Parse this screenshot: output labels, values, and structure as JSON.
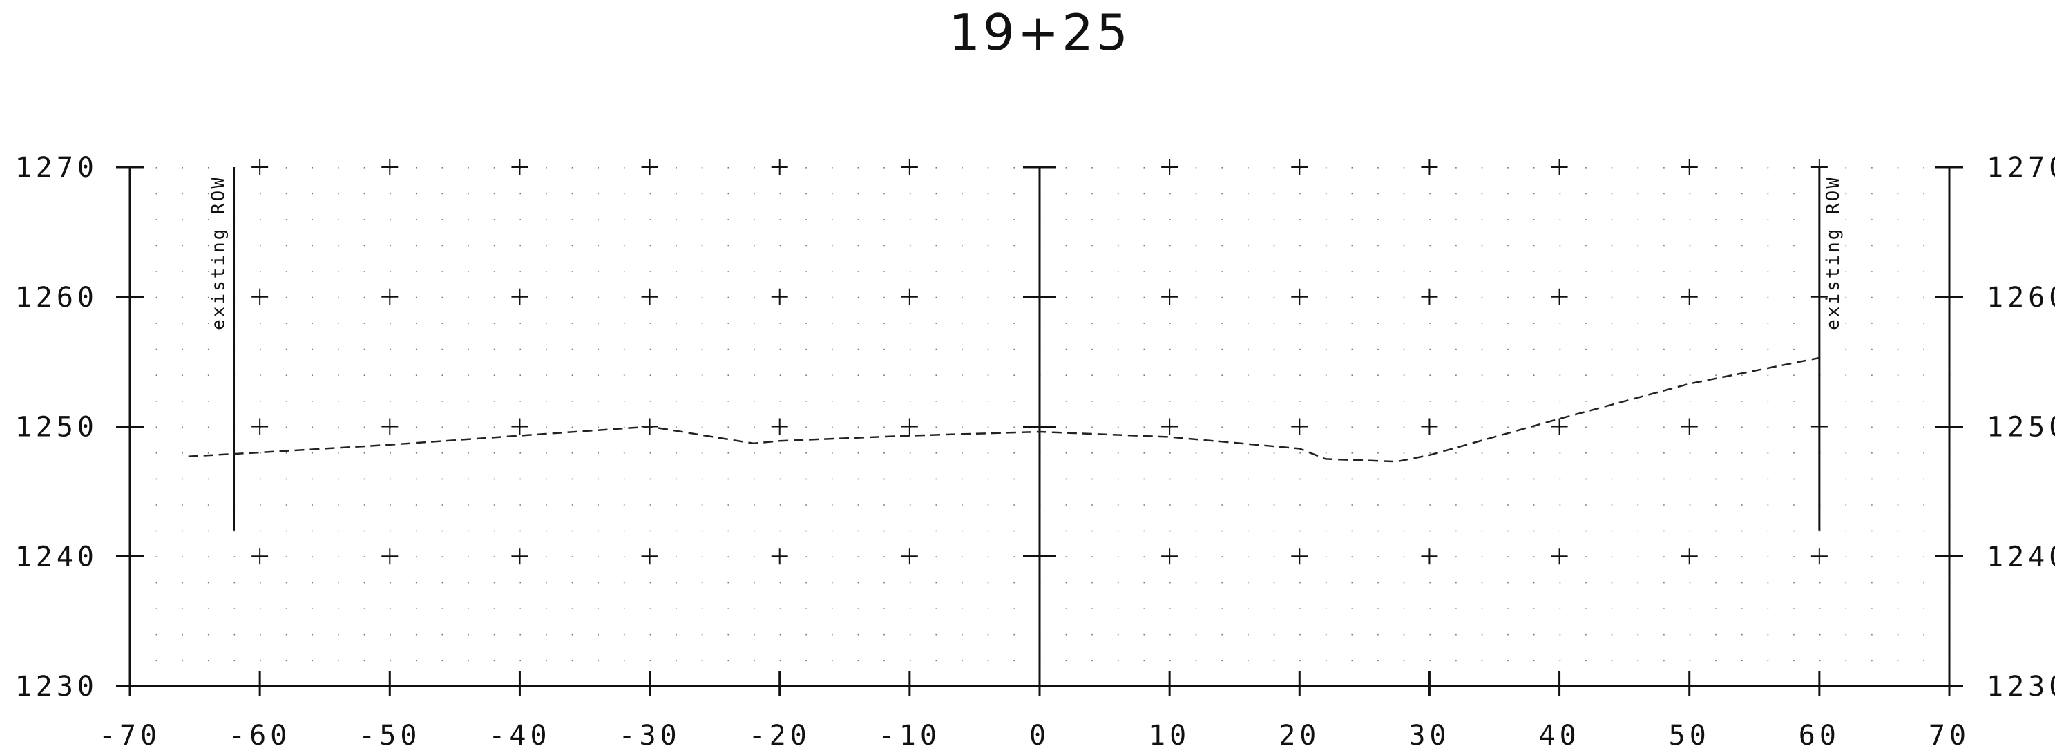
{
  "chart_data": {
    "type": "line",
    "title": "19+25",
    "xlabel": "",
    "ylabel": "",
    "xlim": [
      -70,
      70
    ],
    "ylim": [
      1230,
      1270
    ],
    "x_ticks": [
      -70,
      -60,
      -50,
      -40,
      -30,
      -20,
      -10,
      0,
      10,
      20,
      30,
      40,
      50,
      60,
      70
    ],
    "y_ticks": [
      1230,
      1240,
      1250,
      1260,
      1270
    ],
    "x_tick_labels": [
      "-70",
      "-60",
      "-50",
      "-40",
      "-30",
      "-20",
      "-10",
      "0",
      "10",
      "20",
      "30",
      "40",
      "50",
      "60",
      "70"
    ],
    "y_tick_labels": [
      "1230",
      "1240",
      "1250",
      "1260",
      "1270"
    ],
    "grid": "dotted",
    "series": [
      {
        "style": "dashed",
        "color": "#222222",
        "points": [
          [
            -65.5,
            1247.7
          ],
          [
            -60,
            1248.0
          ],
          [
            -50,
            1248.6
          ],
          [
            -40,
            1249.3
          ],
          [
            -30,
            1250.0
          ],
          [
            -22,
            1248.7
          ],
          [
            -20,
            1248.9
          ],
          [
            -10,
            1249.3
          ],
          [
            0,
            1249.6
          ],
          [
            10,
            1249.2
          ],
          [
            20,
            1248.3
          ],
          [
            22,
            1247.5
          ],
          [
            27.5,
            1247.3
          ],
          [
            30,
            1247.8
          ],
          [
            40,
            1250.6
          ],
          [
            50,
            1253.3
          ],
          [
            60,
            1255.3
          ]
        ]
      }
    ],
    "annotations": [
      {
        "text": "existing ROW",
        "x": -62,
        "y_from": 1242,
        "y_to": 1270
      },
      {
        "text": "existing ROW",
        "x": 60,
        "y_from": 1242,
        "y_to": 1270
      }
    ]
  }
}
